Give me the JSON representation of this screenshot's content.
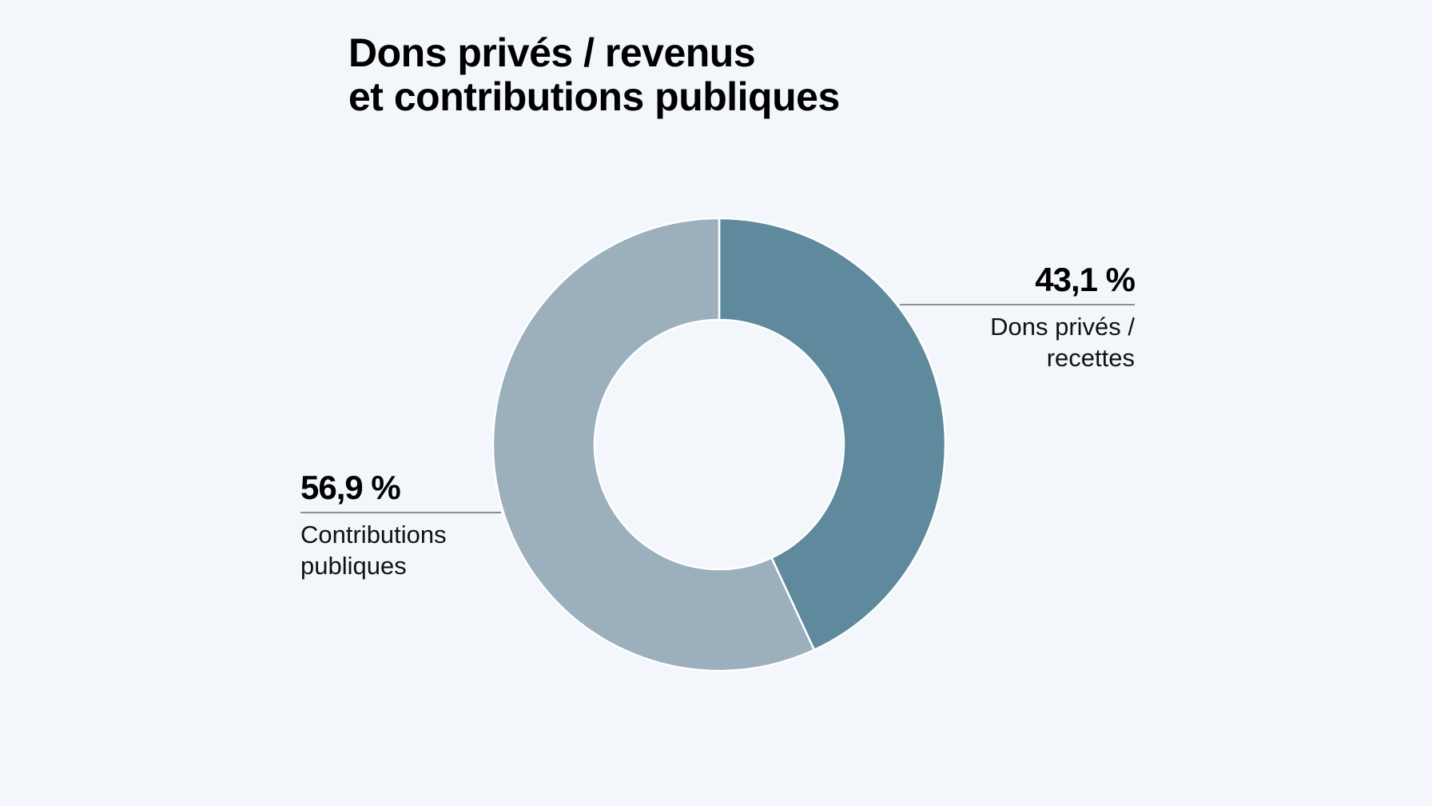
{
  "chart_data": {
    "type": "pie",
    "variant": "donut",
    "title": [
      "Dons privés / revenus",
      "et contributions publiques"
    ],
    "slices": [
      {
        "value_label": "43,1 %",
        "value": 43.1,
        "label": [
          "Dons privés /",
          "recettes"
        ],
        "color": "#5f899c"
      },
      {
        "value_label": "56,9 %",
        "value": 56.9,
        "label": [
          "Contributions",
          "publiques"
        ],
        "color": "#9bafbd"
      }
    ]
  },
  "colors": {
    "background": "#f3f7fc",
    "slice_separator": "#ffffff",
    "leader_line": "#8a8f94"
  }
}
